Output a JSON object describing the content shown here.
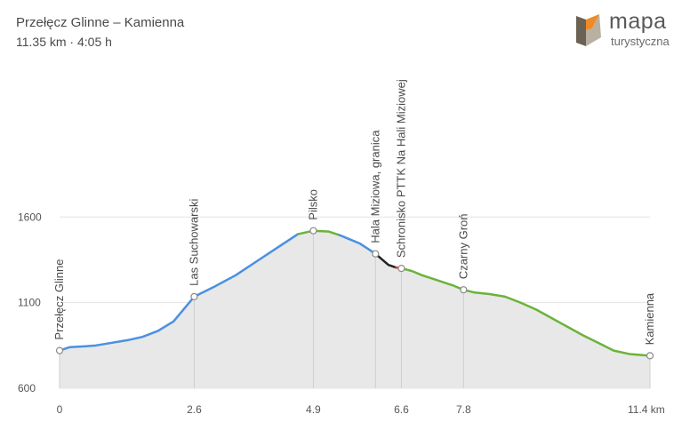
{
  "header": {
    "title": "Przełęcz Glinne – Kamienna",
    "summary": "11.35 km · 4:05 h"
  },
  "logo": {
    "word": "mapa",
    "sub": "turystyczna",
    "colors": {
      "dark": "#6b6253",
      "orange": "#f08a24",
      "light": "#b8b0a0"
    }
  },
  "chart_data": {
    "type": "area",
    "title": "",
    "xlabel": "",
    "ylabel": "",
    "x_unit": "km",
    "xlim": [
      0,
      11.4
    ],
    "ylim": [
      600,
      1700
    ],
    "yticks": [
      600,
      1100,
      1600
    ],
    "xtick_labels": [
      "0",
      "2.6",
      "4.9",
      "6.6",
      "7.8",
      "11.4 km"
    ],
    "xtick_values": [
      0,
      2.6,
      4.9,
      6.6,
      7.8,
      11.4
    ],
    "grid": true,
    "series": [
      {
        "color": "#4a90e2",
        "points": [
          [
            0,
            820
          ],
          [
            0.2,
            840
          ],
          [
            0.5,
            845
          ],
          [
            0.7,
            850
          ],
          [
            1,
            865
          ],
          [
            1.3,
            880
          ],
          [
            1.6,
            900
          ],
          [
            1.9,
            935
          ],
          [
            2.2,
            990
          ],
          [
            2.6,
            1135
          ],
          [
            3,
            1195
          ],
          [
            3.4,
            1260
          ],
          [
            3.8,
            1340
          ],
          [
            4.2,
            1420
          ],
          [
            4.5,
            1480
          ],
          [
            4.6,
            1500
          ]
        ]
      },
      {
        "color": "#6bb33a",
        "points": [
          [
            4.6,
            1500
          ],
          [
            4.9,
            1520
          ],
          [
            5.2,
            1515
          ],
          [
            5.4,
            1495
          ]
        ]
      },
      {
        "color": "#4a90e2",
        "points": [
          [
            5.4,
            1495
          ],
          [
            5.6,
            1470
          ],
          [
            5.8,
            1445
          ],
          [
            6.0,
            1405
          ],
          [
            6.1,
            1385
          ]
        ]
      },
      {
        "color": "#222222",
        "points": [
          [
            6.1,
            1385
          ],
          [
            6.35,
            1320
          ],
          [
            6.5,
            1305
          ]
        ]
      },
      {
        "color": "#e53935",
        "points": [
          [
            6.5,
            1305
          ],
          [
            6.6,
            1300
          ]
        ]
      },
      {
        "color": "#6bb33a",
        "points": [
          [
            6.6,
            1300
          ],
          [
            6.8,
            1285
          ],
          [
            7.0,
            1260
          ],
          [
            7.3,
            1230
          ],
          [
            7.6,
            1200
          ],
          [
            7.8,
            1175
          ],
          [
            8.0,
            1160
          ],
          [
            8.3,
            1150
          ],
          [
            8.6,
            1135
          ],
          [
            8.9,
            1100
          ],
          [
            9.2,
            1060
          ],
          [
            9.5,
            1010
          ],
          [
            9.8,
            960
          ],
          [
            10.1,
            910
          ],
          [
            10.4,
            865
          ],
          [
            10.7,
            820
          ],
          [
            11.0,
            800
          ],
          [
            11.4,
            790
          ]
        ]
      }
    ],
    "pois": [
      {
        "label": "Przełęcz Glinne",
        "x": 0,
        "y": 820
      },
      {
        "label": "Las Suchowarski",
        "x": 2.6,
        "y": 1135
      },
      {
        "label": "Pilsko",
        "x": 4.9,
        "y": 1520
      },
      {
        "label": "Hala Miziowa, granica",
        "x": 6.1,
        "y": 1385
      },
      {
        "label": "Schronisko PTTK Na Hali Miziowej",
        "x": 6.6,
        "y": 1300
      },
      {
        "label": "Czarny Groń",
        "x": 7.8,
        "y": 1175
      },
      {
        "label": "Kamienna",
        "x": 11.4,
        "y": 790
      }
    ]
  }
}
